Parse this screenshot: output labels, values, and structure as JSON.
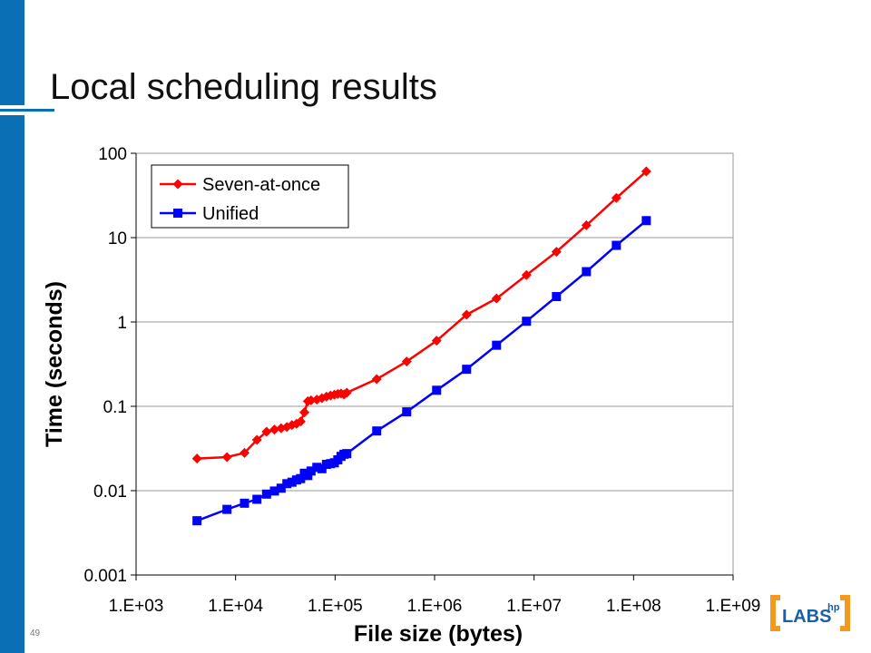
{
  "slide": {
    "title": "Local scheduling results",
    "page_number": "49",
    "logo_text": "LABS",
    "logo_sup": "hp"
  },
  "colors": {
    "accent_bar": "#0a6fb5",
    "series_seven": "#ff0000",
    "series_unified": "#0000ff",
    "logo_orange": "#f39a1e",
    "logo_blue": "#1a5fa8"
  },
  "chart_data": {
    "type": "line",
    "xscale": "log",
    "yscale": "log",
    "xlabel": "File size (bytes)",
    "ylabel": "Time (seconds)",
    "xlim": [
      1000,
      1000000000
    ],
    "ylim": [
      0.001,
      100
    ],
    "xticks": [
      "1.E+03",
      "1.E+04",
      "1.E+05",
      "1.E+06",
      "1.E+07",
      "1.E+08",
      "1.E+09"
    ],
    "yticks": [
      "0.001",
      "0.01",
      "0.1",
      "1",
      "10",
      "100"
    ],
    "grid": "horizontal major",
    "legend": "top-left",
    "series": [
      {
        "name": "Seven-at-once",
        "marker": "diamond",
        "x": [
          4096,
          8192,
          12288,
          16384,
          20480,
          24576,
          28672,
          32768,
          36864,
          40960,
          45056,
          49152,
          53248,
          57344,
          65536,
          73728,
          81920,
          90112,
          98304,
          106496,
          114688,
          122880,
          131072,
          262144,
          524288,
          1048576,
          2097152,
          4194304,
          8388608,
          16777216,
          33554432,
          67108864,
          134217728
        ],
        "y": [
          0.024,
          0.025,
          0.028,
          0.04,
          0.05,
          0.053,
          0.055,
          0.057,
          0.06,
          0.062,
          0.066,
          0.085,
          0.115,
          0.118,
          0.12,
          0.125,
          0.13,
          0.134,
          0.137,
          0.14,
          0.142,
          0.138,
          0.145,
          0.21,
          0.34,
          0.6,
          1.22,
          1.9,
          3.6,
          6.8,
          14,
          29.5,
          61
        ]
      },
      {
        "name": "Unified",
        "marker": "square",
        "x": [
          4096,
          8192,
          12288,
          16384,
          20480,
          24576,
          28672,
          32768,
          36864,
          40960,
          45056,
          49152,
          53248,
          57344,
          65536,
          73728,
          81920,
          90112,
          98304,
          106496,
          114688,
          122880,
          131072,
          262144,
          524288,
          1048576,
          2097152,
          4194304,
          8388608,
          16777216,
          33554432,
          67108864,
          134217728
        ],
        "y": [
          0.0044,
          0.006,
          0.0071,
          0.0079,
          0.0091,
          0.0099,
          0.0107,
          0.0121,
          0.0126,
          0.0134,
          0.0139,
          0.0161,
          0.0151,
          0.0171,
          0.0189,
          0.0182,
          0.0205,
          0.0209,
          0.0214,
          0.0232,
          0.0255,
          0.027,
          0.0275,
          0.051,
          0.086,
          0.155,
          0.275,
          0.53,
          1.02,
          2.0,
          3.95,
          8.1,
          15.9
        ]
      }
    ]
  }
}
